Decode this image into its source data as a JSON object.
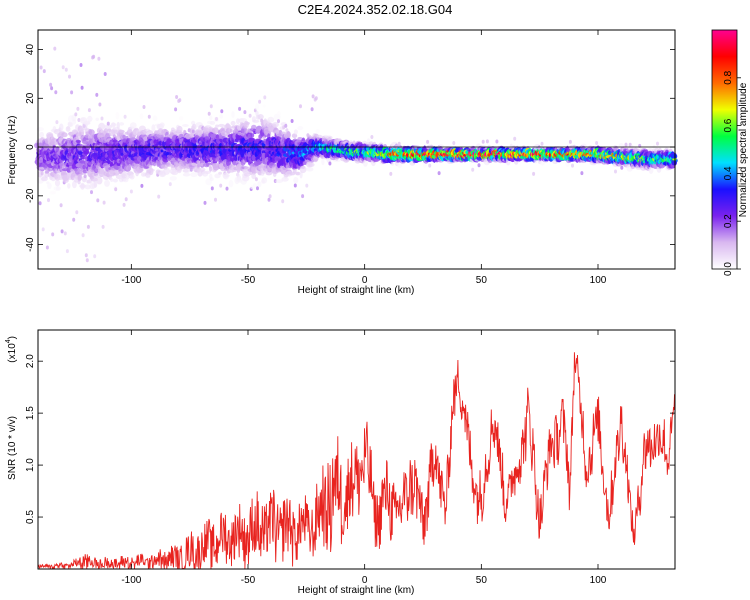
{
  "page_title": "C2E4.2024.352.02.18.G04",
  "chart_data": [
    {
      "type": "heatmap",
      "xlabel": "Height of straight line (km)",
      "ylabel": "Frequency (Hz)",
      "xlim": [
        -140,
        133
      ],
      "ylim": [
        -50,
        48
      ],
      "xticks": [
        -100,
        -50,
        0,
        50,
        100
      ],
      "yticks": [
        -40,
        -20,
        0,
        20,
        40
      ],
      "colorbar": {
        "label": "Normalized spectral amplitude",
        "range": [
          0,
          1
        ],
        "ticks": [
          0.0,
          0.2,
          0.4,
          0.6,
          0.8
        ],
        "colormap": [
          "#ffffff",
          "#d9b8f0",
          "#7a22ee",
          "#1a10ff",
          "#00e0ff",
          "#00ff40",
          "#f0ff00",
          "#ff6a00",
          "#ff0000",
          "#ff0090"
        ]
      },
      "ridge": {
        "x": [
          -140,
          -120,
          -100,
          -80,
          -60,
          -45,
          -35,
          -28,
          -20,
          -12,
          -5,
          0,
          10,
          20,
          40,
          60,
          80,
          100,
          120,
          133
        ],
        "y": [
          -4,
          -3,
          -2,
          -1,
          -1,
          0,
          -2,
          -3,
          0,
          -1,
          -2,
          -2,
          -3,
          -3,
          -3,
          -3,
          -3,
          -3,
          -5,
          -5
        ],
        "amplitude": [
          0.25,
          0.27,
          0.3,
          0.32,
          0.33,
          0.33,
          0.35,
          0.4,
          0.5,
          0.55,
          0.6,
          0.62,
          0.78,
          0.95,
          0.98,
          0.97,
          0.92,
          0.8,
          0.62,
          0.6
        ]
      },
      "scatter_width_hz": {
        "x": [
          -140,
          -120,
          -100,
          -80,
          -60,
          -45,
          -30,
          -20,
          -10,
          0,
          40,
          80,
          120,
          133
        ],
        "half_width": [
          8,
          12,
          9,
          8,
          9,
          11,
          8,
          4,
          3,
          3,
          2,
          2,
          3,
          3
        ]
      }
    },
    {
      "type": "line",
      "xlabel": "Height of straight line (km)",
      "ylabel": "SNR (10 * v/v)",
      "y_multiplier": "(x10",
      "y_multiplier_exp": "4",
      "xlim": [
        -140,
        133
      ],
      "ylim": [
        0,
        2.3
      ],
      "xticks": [
        -100,
        -50,
        0,
        50,
        100
      ],
      "yticks": [
        0.5,
        1.0,
        1.5,
        2.0
      ],
      "color": "#e8231f",
      "series": {
        "x": [
          -140,
          -125,
          -120,
          -115,
          -100,
          -90,
          -80,
          -70,
          -60,
          -50,
          -40,
          -30,
          -22,
          -15,
          -5,
          0,
          5,
          10,
          15,
          20,
          25,
          30,
          35,
          38,
          40,
          45,
          50,
          55,
          60,
          65,
          70,
          75,
          80,
          85,
          88,
          90,
          95,
          100,
          105,
          110,
          115,
          120,
          125,
          130,
          133
        ],
        "y_mean": [
          0.02,
          0.04,
          0.08,
          0.05,
          0.06,
          0.08,
          0.1,
          0.2,
          0.3,
          0.35,
          0.4,
          0.38,
          0.4,
          0.7,
          0.8,
          1.1,
          0.5,
          0.7,
          0.5,
          0.9,
          0.45,
          1.1,
          0.6,
          1.6,
          1.9,
          1.1,
          0.6,
          1.5,
          0.7,
          0.9,
          1.5,
          0.5,
          1.2,
          1.4,
          0.8,
          2.1,
          1.0,
          1.4,
          0.5,
          1.5,
          0.3,
          1.1,
          1.3,
          1.1,
          1.65
        ],
        "y_spread": [
          0.02,
          0.04,
          0.12,
          0.06,
          0.08,
          0.1,
          0.15,
          0.25,
          0.3,
          0.35,
          0.4,
          0.35,
          0.3,
          0.6,
          0.5,
          0.45,
          0.35,
          0.4,
          0.35,
          0.4,
          0.35,
          0.35,
          0.3,
          0.3,
          0.2,
          0.35,
          0.3,
          0.3,
          0.3,
          0.3,
          0.35,
          0.3,
          0.3,
          0.3,
          0.3,
          0.2,
          0.3,
          0.3,
          0.3,
          0.3,
          0.2,
          0.3,
          0.3,
          0.3,
          0.1
        ]
      }
    }
  ]
}
